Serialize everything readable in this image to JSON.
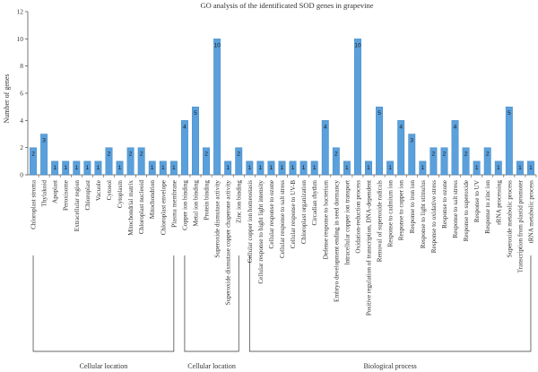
{
  "chart_data": {
    "type": "bar",
    "title": "GO analysis of the identificated SOD genes in grapevine",
    "ylabel": "Number of genes",
    "xlabel": "",
    "ylim": [
      0,
      12
    ],
    "yticks": [
      "0",
      "2",
      "4",
      "6",
      "8",
      "10",
      "12"
    ],
    "grid": false,
    "colors": {
      "bar": "#5aa0dc",
      "bar_edge": "#3a7fbd",
      "axis": "#555555"
    },
    "categories": [
      "Chloroplast stroma",
      "Thylakoid",
      "Apoplast",
      "Peroxisome",
      "Extracellular region",
      "Chloroplast",
      "Vacuole",
      "Cytosol",
      "Cytoplasm",
      "Mitochondrial matrix",
      "Chloroplast nucleoid",
      "Mitochondrion",
      "Chloroplast envelope",
      "Plasma membrane",
      "Copper ion binding",
      "Metal ion binding",
      "Protein binding",
      "Superoxide dismutase activity",
      "Superoxide dismutase copper chaperone activity",
      "Zinc ion binding",
      "Cellular copper ion homeostasis",
      "Cellular response to hight light intensity",
      "Cellular response to ozone",
      "Cellular response to salt stress",
      "Cellular response to UV-B",
      "Chloroplast organization",
      "Circadian rhythm",
      "Defense response to bacterium",
      "Embryo development ending in seed dormancy",
      "Intracellular copper ion transport",
      "Oxidation-reduction process",
      "Positive regulation of transcription, DNA-dependent",
      "Removal of superoxide radicals",
      "Response to cadmium ion",
      "Response to copper ion",
      "Response to iron ion",
      "Response to light stimulus",
      "Response to oxidative stress",
      "Response to ozone",
      "Response to salt stress",
      "Response to superoxide",
      "Response to UV",
      "Response to zinc ion",
      "rRNA processing",
      "Superoxide metabolic process",
      "Transcription from plastid promoter",
      "tRNA metabolic process"
    ],
    "values": [
      2,
      3,
      1,
      1,
      1,
      1,
      1,
      2,
      1,
      2,
      2,
      1,
      1,
      1,
      4,
      5,
      2,
      10,
      1,
      2,
      1,
      1,
      1,
      1,
      1,
      1,
      1,
      4,
      2,
      1,
      10,
      1,
      5,
      1,
      4,
      3,
      1,
      2,
      2,
      4,
      2,
      1,
      2,
      1,
      5,
      1,
      1
    ],
    "groups": [
      {
        "label": "Cellular location",
        "start": 0,
        "end": 13
      },
      {
        "label": "Cellular location",
        "start": 14,
        "end": 19
      },
      {
        "label": "Biological process",
        "start": 20,
        "end": 46
      }
    ]
  }
}
